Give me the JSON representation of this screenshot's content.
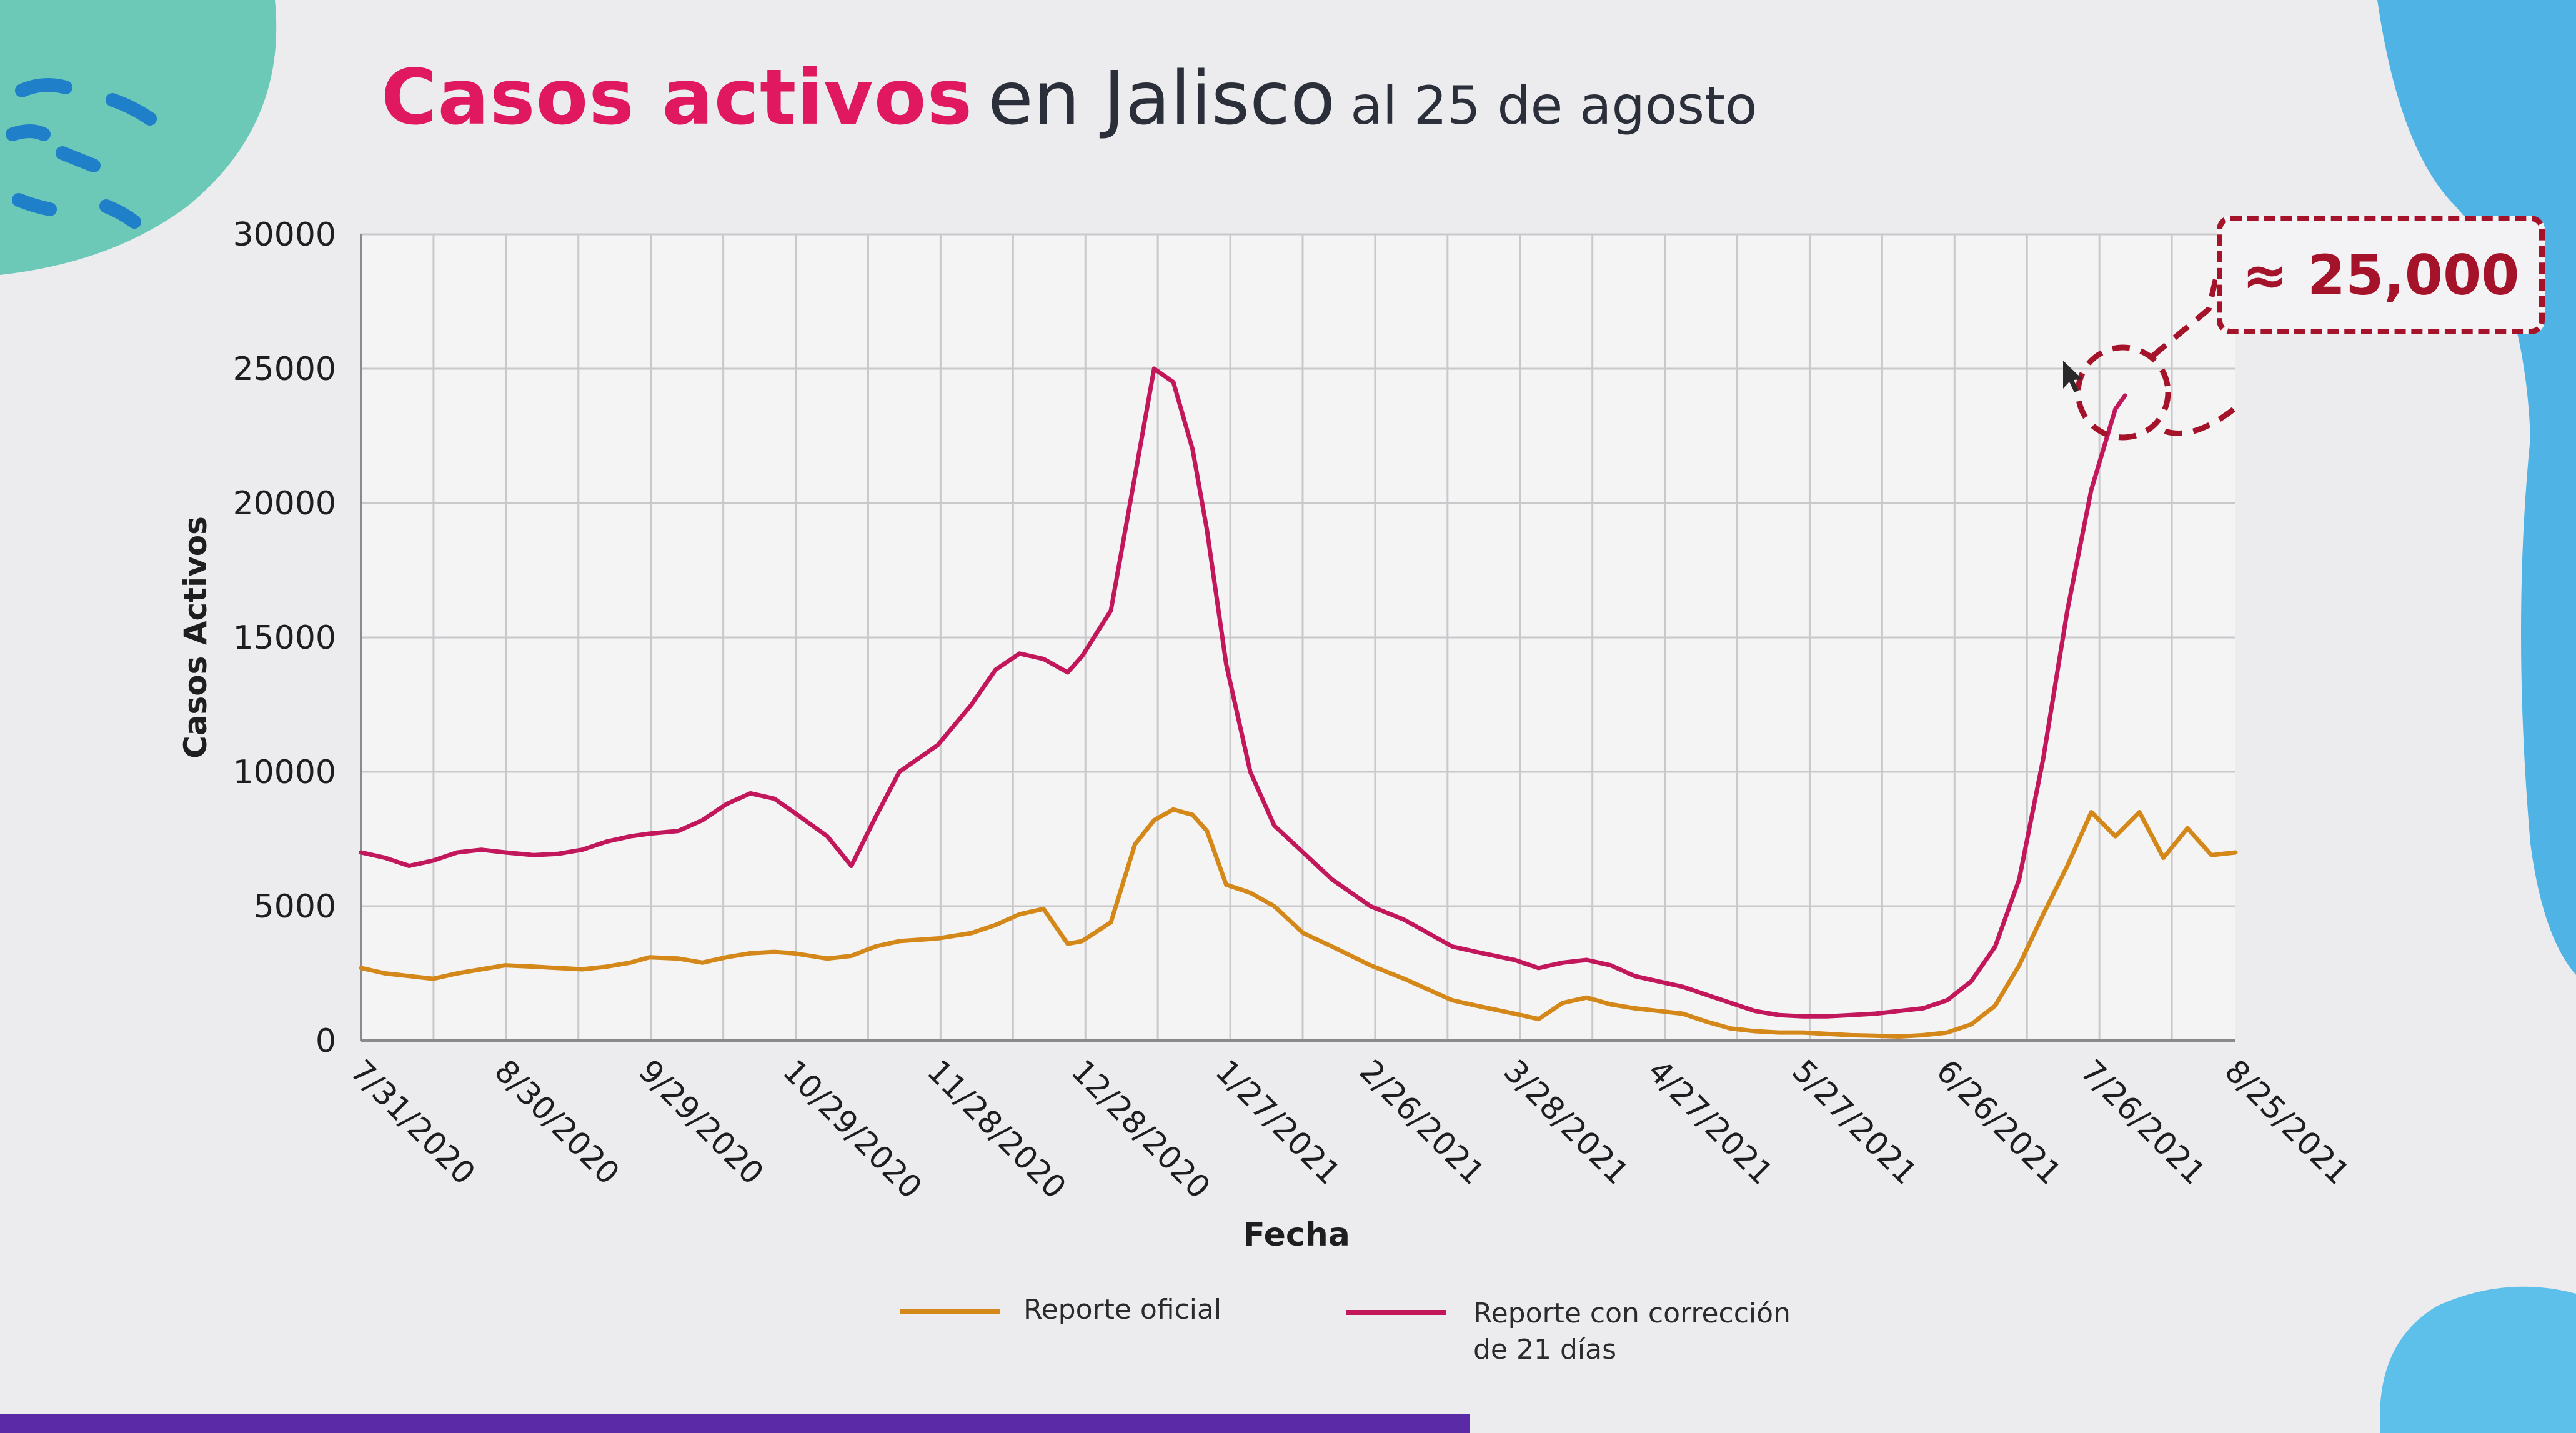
{
  "slide": {
    "title_bold": "Casos activos",
    "title_rest": "en Jalisco",
    "title_date": "al 25 de agosto",
    "callout": "≈ 25,000"
  },
  "colors": {
    "oficial": "#d4881a",
    "corregido": "#c2185b",
    "title_accent": "#e0185f",
    "callout": "#a4132a",
    "decor_teal": "#6cc9b8",
    "decor_blue": "#4fb3e6"
  },
  "chart_data": {
    "type": "line",
    "title": "",
    "xlabel": "Fecha",
    "ylabel": "Casos Activos",
    "ylim": [
      0,
      30000
    ],
    "yticks": [
      0,
      5000,
      10000,
      15000,
      20000,
      25000,
      30000
    ],
    "ytick_labels": [
      "0",
      "5000",
      "10000",
      "15000",
      "20000",
      "25000",
      "30000"
    ],
    "xlim": [
      "2020-07-31",
      "2021-08-25"
    ],
    "xticks": [
      "7/31/2020",
      "8/30/2020",
      "9/29/2020",
      "10/29/2020",
      "11/28/2020",
      "12/28/2020",
      "1/27/2021",
      "2/26/2021",
      "3/28/2021",
      "4/27/2021",
      "5/27/2021",
      "6/26/2021",
      "7/26/2021",
      "8/25/2021"
    ],
    "grid": true,
    "legend_position": "bottom",
    "series": [
      {
        "name": "Reporte oficial",
        "x": [
          "2020-07-31",
          "2020-08-05",
          "2020-08-10",
          "2020-08-15",
          "2020-08-20",
          "2020-08-25",
          "2020-08-30",
          "2020-09-05",
          "2020-09-10",
          "2020-09-15",
          "2020-09-20",
          "2020-09-25",
          "2020-09-29",
          "2020-10-05",
          "2020-10-10",
          "2020-10-15",
          "2020-10-20",
          "2020-10-25",
          "2020-10-29",
          "2020-11-05",
          "2020-11-10",
          "2020-11-15",
          "2020-11-20",
          "2020-11-28",
          "2020-12-05",
          "2020-12-10",
          "2020-12-15",
          "2020-12-20",
          "2020-12-25",
          "2020-12-28",
          "2021-01-03",
          "2021-01-08",
          "2021-01-12",
          "2021-01-16",
          "2021-01-20",
          "2021-01-23",
          "2021-01-27",
          "2021-02-01",
          "2021-02-06",
          "2021-02-12",
          "2021-02-18",
          "2021-02-26",
          "2021-03-05",
          "2021-03-10",
          "2021-03-15",
          "2021-03-20",
          "2021-03-28",
          "2021-04-02",
          "2021-04-07",
          "2021-04-12",
          "2021-04-17",
          "2021-04-22",
          "2021-04-27",
          "2021-05-02",
          "2021-05-07",
          "2021-05-12",
          "2021-05-17",
          "2021-05-22",
          "2021-05-27",
          "2021-06-01",
          "2021-06-06",
          "2021-06-11",
          "2021-06-16",
          "2021-06-21",
          "2021-06-26",
          "2021-07-01",
          "2021-07-06",
          "2021-07-11",
          "2021-07-16",
          "2021-07-21",
          "2021-07-26",
          "2021-07-31",
          "2021-08-05",
          "2021-08-10",
          "2021-08-15",
          "2021-08-20",
          "2021-08-25"
        ],
        "y": [
          2700,
          2500,
          2400,
          2300,
          2500,
          2650,
          2800,
          2750,
          2700,
          2650,
          2750,
          2900,
          3100,
          3050,
          2900,
          3100,
          3250,
          3300,
          3250,
          3050,
          3150,
          3500,
          3700,
          3800,
          4000,
          4300,
          4700,
          4900,
          3600,
          3700,
          4400,
          7300,
          8200,
          8600,
          8400,
          7800,
          5800,
          5500,
          5000,
          4000,
          3500,
          2800,
          2300,
          1900,
          1500,
          1300,
          1000,
          800,
          1400,
          1600,
          1350,
          1200,
          1100,
          1000,
          700,
          450,
          350,
          300,
          300,
          250,
          200,
          180,
          150,
          200,
          300,
          600,
          1300,
          2800,
          4700,
          6500,
          8500,
          7600,
          8500,
          6800,
          7900,
          6900,
          7000
        ]
      },
      {
        "name": "Reporte con corrección de 21 días",
        "x": [
          "2020-07-31",
          "2020-08-05",
          "2020-08-10",
          "2020-08-15",
          "2020-08-20",
          "2020-08-25",
          "2020-08-30",
          "2020-09-05",
          "2020-09-10",
          "2020-09-15",
          "2020-09-20",
          "2020-09-25",
          "2020-09-29",
          "2020-10-05",
          "2020-10-10",
          "2020-10-15",
          "2020-10-20",
          "2020-10-25",
          "2020-10-29",
          "2020-11-05",
          "2020-11-10",
          "2020-11-15",
          "2020-11-20",
          "2020-11-28",
          "2020-12-05",
          "2020-12-10",
          "2020-12-15",
          "2020-12-20",
          "2020-12-25",
          "2020-12-28",
          "2021-01-03",
          "2021-01-08",
          "2021-01-12",
          "2021-01-16",
          "2021-01-20",
          "2021-01-23",
          "2021-01-27",
          "2021-02-01",
          "2021-02-06",
          "2021-02-12",
          "2021-02-18",
          "2021-02-26",
          "2021-03-05",
          "2021-03-10",
          "2021-03-15",
          "2021-03-20",
          "2021-03-28",
          "2021-04-02",
          "2021-04-07",
          "2021-04-12",
          "2021-04-17",
          "2021-04-22",
          "2021-04-27",
          "2021-05-02",
          "2021-05-07",
          "2021-05-12",
          "2021-05-17",
          "2021-05-22",
          "2021-05-27",
          "2021-06-01",
          "2021-06-06",
          "2021-06-11",
          "2021-06-16",
          "2021-06-21",
          "2021-06-26",
          "2021-07-01",
          "2021-07-06",
          "2021-07-11",
          "2021-07-16",
          "2021-07-21",
          "2021-07-26",
          "2021-07-31",
          "2021-08-02"
        ],
        "y": [
          7000,
          6800,
          6500,
          6700,
          7000,
          7100,
          7000,
          6900,
          6950,
          7100,
          7400,
          7600,
          7700,
          7800,
          8200,
          8800,
          9200,
          9000,
          8500,
          7600,
          6500,
          8300,
          10000,
          11000,
          12500,
          13800,
          14400,
          14200,
          13700,
          14300,
          16000,
          21000,
          25000,
          24500,
          22000,
          19000,
          14000,
          10000,
          8000,
          7000,
          6000,
          5000,
          4500,
          4000,
          3500,
          3300,
          3000,
          2700,
          2900,
          3000,
          2800,
          2400,
          2200,
          2000,
          1700,
          1400,
          1100,
          950,
          900,
          900,
          950,
          1000,
          1100,
          1200,
          1500,
          2200,
          3500,
          6000,
          10500,
          16000,
          20500,
          23500,
          24000
        ]
      }
    ]
  }
}
